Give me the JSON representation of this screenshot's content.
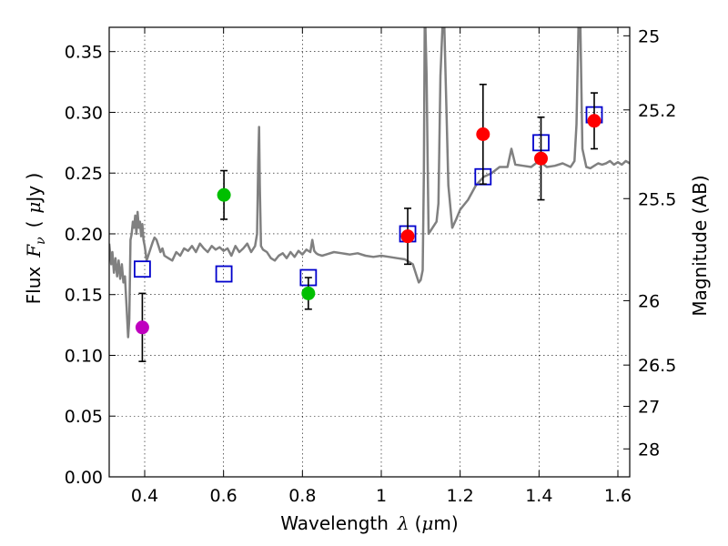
{
  "chart_data": {
    "type": "scatter",
    "xlabel_text": "Wavelength",
    "xlabel_symbol": "λ",
    "xlabel_unit_open": "(",
    "xlabel_unit_mu": "μ",
    "xlabel_unit_close": "m)",
    "ylabel_text": "Flux",
    "ylabel_symbol": "F",
    "ylabel_subscript": "ν",
    "ylabel_unit_open": "(",
    "ylabel_unit_mu": "μ",
    "ylabel_unit_close": "Jy )",
    "y2label": "Magnitude (AB)",
    "xlim": [
      0.31,
      1.63
    ],
    "ylim": [
      0.0,
      0.37
    ],
    "grid": true,
    "xticks": [
      {
        "value": 0.4,
        "label": "0.4"
      },
      {
        "value": 0.6,
        "label": "0.6"
      },
      {
        "value": 0.8,
        "label": "0.8"
      },
      {
        "value": 1.0,
        "label": "1"
      },
      {
        "value": 1.2,
        "label": "1.2"
      },
      {
        "value": 1.4,
        "label": "1.4"
      },
      {
        "value": 1.6,
        "label": "1.6"
      }
    ],
    "yticks": [
      {
        "value": 0.0,
        "label": "0.00"
      },
      {
        "value": 0.05,
        "label": "0.05"
      },
      {
        "value": 0.1,
        "label": "0.10"
      },
      {
        "value": 0.15,
        "label": "0.15"
      },
      {
        "value": 0.2,
        "label": "0.20"
      },
      {
        "value": 0.25,
        "label": "0.25"
      },
      {
        "value": 0.3,
        "label": "0.30"
      },
      {
        "value": 0.35,
        "label": "0.35"
      }
    ],
    "y2ticks": [
      {
        "flux": 0.363,
        "label": "25"
      },
      {
        "flux": 0.302,
        "label": "25.2"
      },
      {
        "flux": 0.229,
        "label": "25.5"
      },
      {
        "flux": 0.145,
        "label": "26"
      },
      {
        "flux": 0.092,
        "label": "26.5"
      },
      {
        "flux": 0.058,
        "label": "27"
      },
      {
        "flux": 0.023,
        "label": "28"
      }
    ],
    "series": [
      {
        "name": "model-spectrum",
        "kind": "line",
        "color": "#808080",
        "x": [
          0.31,
          0.315,
          0.318,
          0.322,
          0.326,
          0.33,
          0.334,
          0.338,
          0.342,
          0.346,
          0.35,
          0.354,
          0.358,
          0.361,
          0.364,
          0.367,
          0.37,
          0.373,
          0.376,
          0.379,
          0.382,
          0.385,
          0.388,
          0.391,
          0.394,
          0.397,
          0.4,
          0.405,
          0.41,
          0.415,
          0.42,
          0.425,
          0.43,
          0.435,
          0.44,
          0.445,
          0.45,
          0.46,
          0.47,
          0.48,
          0.49,
          0.5,
          0.51,
          0.52,
          0.53,
          0.54,
          0.55,
          0.56,
          0.57,
          0.58,
          0.59,
          0.6,
          0.61,
          0.62,
          0.63,
          0.64,
          0.65,
          0.66,
          0.67,
          0.68,
          0.685,
          0.688,
          0.69,
          0.692,
          0.695,
          0.7,
          0.71,
          0.72,
          0.73,
          0.74,
          0.75,
          0.76,
          0.77,
          0.78,
          0.79,
          0.8,
          0.81,
          0.82,
          0.825,
          0.83,
          0.835,
          0.84,
          0.85,
          0.86,
          0.88,
          0.9,
          0.92,
          0.94,
          0.96,
          0.98,
          1.0,
          1.02,
          1.04,
          1.06,
          1.07,
          1.08,
          1.09,
          1.095,
          1.1,
          1.105,
          1.108,
          1.11,
          1.112,
          1.115,
          1.118,
          1.12,
          1.13,
          1.14,
          1.145,
          1.15,
          1.155,
          1.16,
          1.17,
          1.18,
          1.19,
          1.2,
          1.22,
          1.24,
          1.26,
          1.28,
          1.3,
          1.32,
          1.33,
          1.34,
          1.36,
          1.38,
          1.4,
          1.42,
          1.44,
          1.46,
          1.48,
          1.49,
          1.495,
          1.5,
          1.505,
          1.51,
          1.52,
          1.53,
          1.54,
          1.55,
          1.56,
          1.57,
          1.58,
          1.59,
          1.6,
          1.61,
          1.62,
          1.63
        ],
        "y": [
          0.192,
          0.175,
          0.185,
          0.168,
          0.18,
          0.165,
          0.178,
          0.163,
          0.175,
          0.16,
          0.165,
          0.14,
          0.115,
          0.13,
          0.195,
          0.2,
          0.21,
          0.205,
          0.215,
          0.2,
          0.218,
          0.205,
          0.21,
          0.198,
          0.208,
          0.195,
          0.19,
          0.178,
          0.183,
          0.188,
          0.193,
          0.197,
          0.195,
          0.19,
          0.185,
          0.188,
          0.182,
          0.18,
          0.178,
          0.185,
          0.182,
          0.188,
          0.186,
          0.19,
          0.185,
          0.192,
          0.188,
          0.185,
          0.19,
          0.187,
          0.189,
          0.186,
          0.188,
          0.182,
          0.19,
          0.185,
          0.188,
          0.192,
          0.185,
          0.19,
          0.2,
          0.26,
          0.288,
          0.24,
          0.19,
          0.187,
          0.185,
          0.18,
          0.178,
          0.182,
          0.184,
          0.18,
          0.185,
          0.181,
          0.186,
          0.183,
          0.187,
          0.185,
          0.195,
          0.186,
          0.184,
          0.183,
          0.182,
          0.183,
          0.185,
          0.184,
          0.183,
          0.184,
          0.182,
          0.181,
          0.182,
          0.181,
          0.18,
          0.179,
          0.177,
          0.175,
          0.165,
          0.16,
          0.162,
          0.17,
          0.25,
          0.37,
          0.37,
          0.33,
          0.25,
          0.2,
          0.205,
          0.21,
          0.225,
          0.33,
          0.37,
          0.37,
          0.24,
          0.205,
          0.212,
          0.22,
          0.228,
          0.24,
          0.247,
          0.25,
          0.255,
          0.255,
          0.27,
          0.257,
          0.256,
          0.255,
          0.26,
          0.255,
          0.256,
          0.258,
          0.255,
          0.26,
          0.29,
          0.37,
          0.37,
          0.27,
          0.255,
          0.254,
          0.256,
          0.258,
          0.257,
          0.258,
          0.26,
          0.257,
          0.259,
          0.257,
          0.26,
          0.258
        ]
      },
      {
        "name": "model-photometry",
        "kind": "open-square",
        "color": "#0000cc",
        "points": [
          {
            "x": 0.394,
            "y": 0.171
          },
          {
            "x": 0.601,
            "y": 0.167
          },
          {
            "x": 0.815,
            "y": 0.164
          },
          {
            "x": 1.067,
            "y": 0.2
          },
          {
            "x": 1.258,
            "y": 0.247
          },
          {
            "x": 1.405,
            "y": 0.275
          },
          {
            "x": 1.54,
            "y": 0.298
          }
        ]
      },
      {
        "name": "observed",
        "kind": "point-errorbar",
        "points": [
          {
            "x": 0.394,
            "y": 0.123,
            "yerr": 0.028,
            "color": "#bf00bf"
          },
          {
            "x": 0.601,
            "y": 0.232,
            "yerr": 0.02,
            "color": "#00bf00"
          },
          {
            "x": 0.815,
            "y": 0.151,
            "yerr": 0.013,
            "color": "#00bf00"
          },
          {
            "x": 1.067,
            "y": 0.198,
            "yerr": 0.023,
            "color": "#ff0000"
          },
          {
            "x": 1.258,
            "y": 0.282,
            "yerr": 0.041,
            "color": "#ff0000"
          },
          {
            "x": 1.405,
            "y": 0.262,
            "yerr": 0.034,
            "color": "#ff0000"
          },
          {
            "x": 1.54,
            "y": 0.293,
            "yerr": 0.023,
            "color": "#ff0000"
          }
        ]
      }
    ]
  }
}
